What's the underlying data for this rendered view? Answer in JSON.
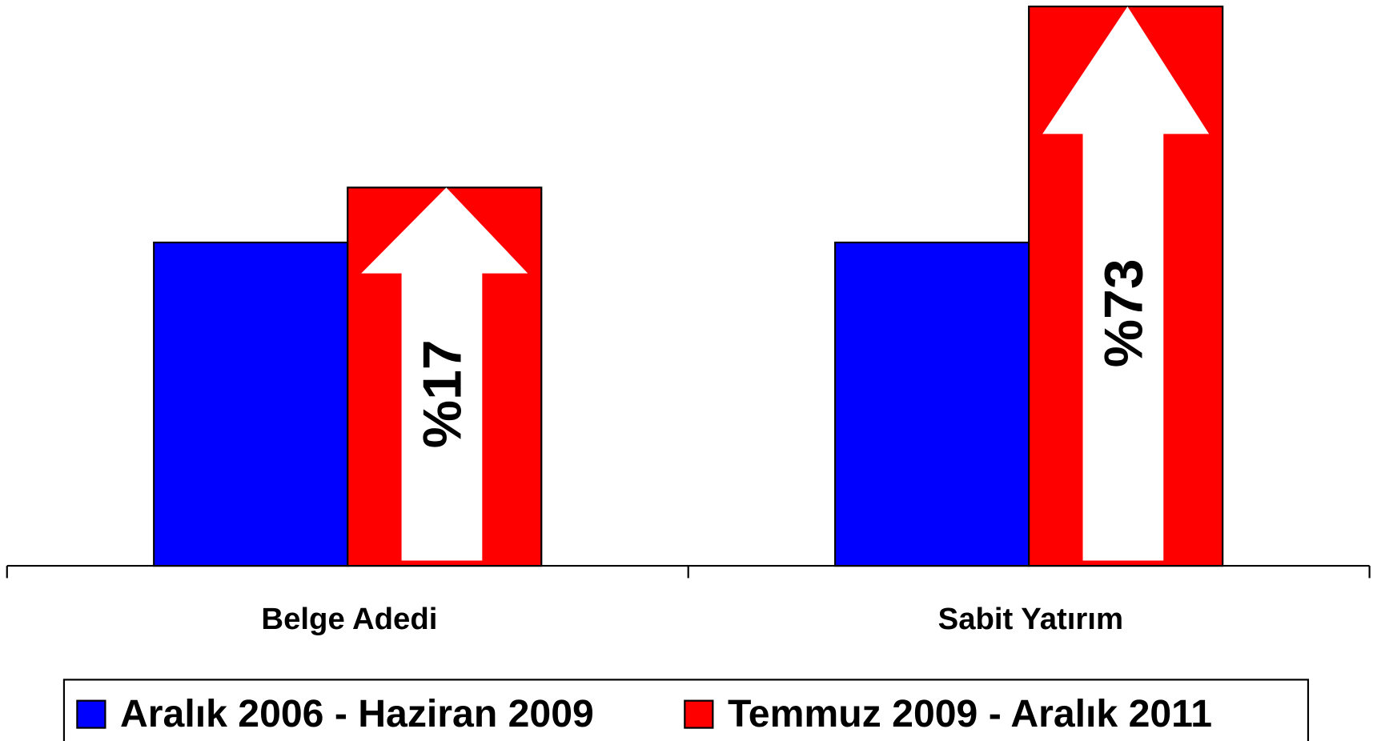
{
  "chart_data": {
    "type": "bar",
    "categories": [
      "Belge Adedi",
      "Sabit Yatırım"
    ],
    "series": [
      {
        "name": "Aralık 2006 - Haziran 2009",
        "color": "#0000ff",
        "values": [
          100,
          100
        ]
      },
      {
        "name": "Temmuz 2009 - Aralık 2011",
        "color": "#ff0000",
        "values": [
          117,
          173
        ]
      }
    ],
    "annotations": [
      "%17",
      "%73"
    ],
    "ylim": [
      0,
      175
    ],
    "legend": "bottom"
  }
}
